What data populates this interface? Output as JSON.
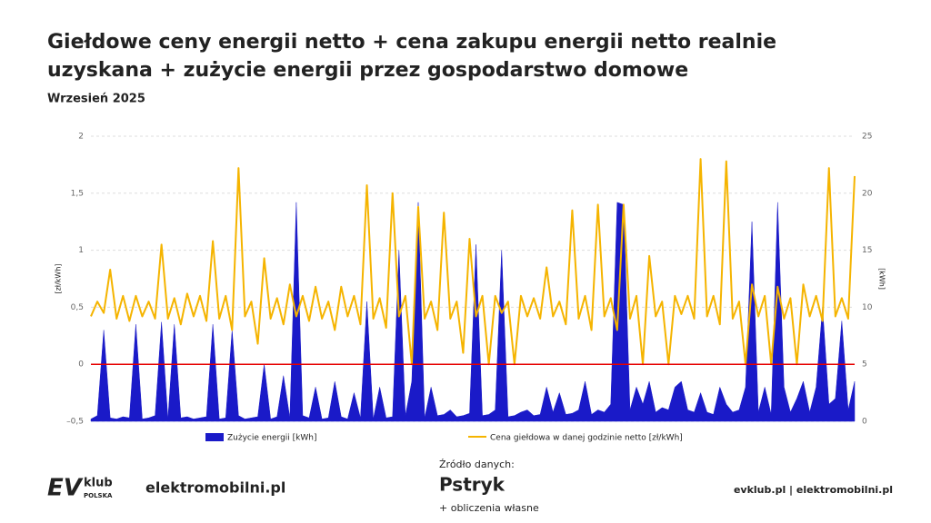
{
  "chart_data": {
    "type": "line",
    "title": [
      "Giełdowe ceny energii netto + cena zakupu energii netto realnie",
      "uzyskana + zużycie energii przez gospodarstwo domowe"
    ],
    "subtitle": "Wrzesień 2025",
    "ylabel": "[zł/kWh]",
    "y2label": "[kWh]",
    "ylim": [
      -0.5,
      2
    ],
    "yticks": [
      {
        "value": -0.5,
        "label": "–0,5"
      },
      0,
      {
        "value": 0.5,
        "label": "0,5"
      },
      1,
      {
        "value": 1.5,
        "label": "1,5"
      },
      2
    ],
    "y2lim": [
      0,
      25
    ],
    "y2ticks": [
      0,
      5,
      10,
      15,
      20,
      25
    ],
    "grid": true,
    "legend": "bottom",
    "reference_line": {
      "value": 0,
      "color": "#e60000"
    },
    "series": [
      {
        "name": "Zużycie energii [kWh]",
        "color": "#1a1ac8",
        "style": "area",
        "axis": "y2",
        "values": [
          0.2,
          0.5,
          8,
          0.3,
          0.2,
          0.4,
          0.3,
          8.5,
          0.2,
          0.3,
          0.5,
          8.7,
          0.2,
          8.5,
          0.3,
          0.4,
          0.2,
          0.3,
          0.4,
          8.5,
          0.2,
          0.3,
          8,
          0.5,
          0.2,
          0.3,
          0.4,
          5,
          0.2,
          0.4,
          4,
          0.3,
          19.2,
          0.5,
          0.3,
          3,
          0.2,
          0.3,
          3.5,
          0.4,
          0.2,
          2.5,
          0.3,
          10.5,
          0.2,
          3,
          0.3,
          0.4,
          15,
          0.5,
          3.5,
          19.2,
          0.3,
          3,
          0.5,
          0.6,
          1,
          0.4,
          0.5,
          0.7,
          15.5,
          0.5,
          0.6,
          1,
          15,
          0.4,
          0.5,
          0.8,
          1,
          0.5,
          0.6,
          3,
          0.8,
          2.5,
          0.6,
          0.7,
          1,
          3.5,
          0.6,
          1,
          0.8,
          1.5,
          19.2,
          19,
          1,
          3,
          1.5,
          3.5,
          0.8,
          1.2,
          1,
          3,
          3.5,
          1,
          0.8,
          2.5,
          0.8,
          0.6,
          3,
          1.5,
          0.8,
          1,
          3,
          17.5,
          0.8,
          3,
          0.6,
          19.2,
          3,
          0.8,
          2,
          3.5,
          0.8,
          3,
          10,
          1.5,
          2,
          8.8,
          1,
          3.5
        ]
      },
      {
        "name": "Cena giełdowa w danej godzinie netto [zł/kWh]",
        "color": "#f5b400",
        "style": "line",
        "axis": "y",
        "values": [
          0.42,
          0.55,
          0.45,
          0.83,
          0.4,
          0.6,
          0.38,
          0.6,
          0.42,
          0.55,
          0.4,
          1.05,
          0.4,
          0.58,
          0.35,
          0.62,
          0.42,
          0.6,
          0.38,
          1.08,
          0.4,
          0.6,
          0.3,
          1.72,
          0.42,
          0.55,
          0.18,
          0.93,
          0.4,
          0.58,
          0.35,
          0.7,
          0.42,
          0.6,
          0.38,
          0.68,
          0.4,
          0.55,
          0.3,
          0.68,
          0.42,
          0.6,
          0.35,
          1.57,
          0.4,
          0.58,
          0.32,
          1.5,
          0.42,
          0.6,
          0,
          1.38,
          0.4,
          0.55,
          0.3,
          1.33,
          0.4,
          0.55,
          0.1,
          1.1,
          0.42,
          0.6,
          0,
          0.6,
          0.45,
          0.55,
          0,
          0.6,
          0.42,
          0.58,
          0.4,
          0.85,
          0.42,
          0.55,
          0.35,
          1.35,
          0.4,
          0.6,
          0.3,
          1.4,
          0.42,
          0.58,
          0.3,
          1.4,
          0.4,
          0.6,
          0,
          0.95,
          0.42,
          0.55,
          0,
          0.6,
          0.44,
          0.6,
          0.4,
          1.8,
          0.42,
          0.6,
          0.35,
          1.78,
          0.4,
          0.55,
          0,
          0.7,
          0.42,
          0.6,
          0,
          0.68,
          0.4,
          0.58,
          0,
          0.7,
          0.42,
          0.6,
          0.38,
          1.72,
          0.42,
          0.58,
          0.4,
          1.65
        ]
      }
    ]
  },
  "footer": {
    "logo_ev": "EV",
    "logo_klub": "klub",
    "logo_polska": "POLSKA",
    "brand": "elektromobilni.pl",
    "source_label": "Źródło danych:",
    "source": "Pstryk",
    "source_note": "+ obliczenia własne",
    "links": "evklub.pl | elektromobilni.pl"
  }
}
